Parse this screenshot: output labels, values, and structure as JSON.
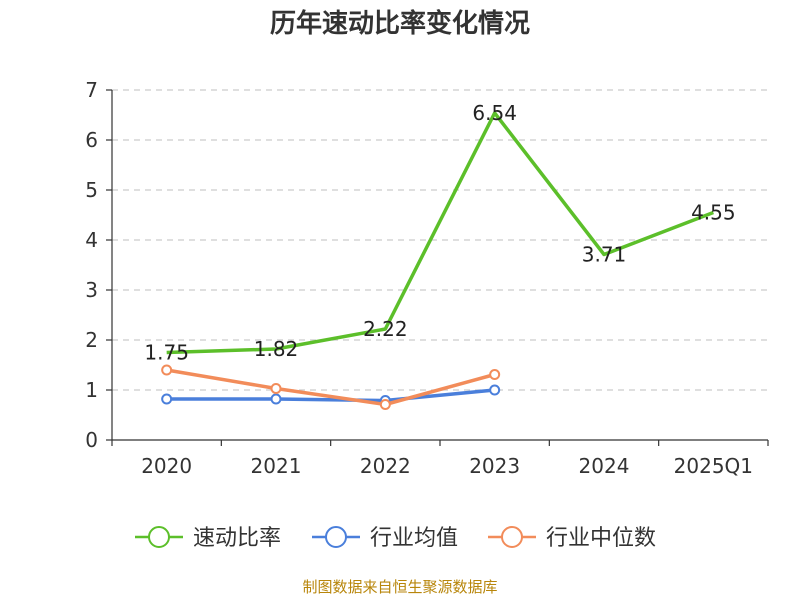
{
  "chart_data": {
    "type": "line",
    "title": "历年速动比率变化情况",
    "categories": [
      "2020",
      "2021",
      "2022",
      "2023",
      "2024",
      "2025Q1"
    ],
    "ylim": [
      0,
      7
    ],
    "yticks": [
      "0",
      "1",
      "2",
      "3",
      "4",
      "5",
      "6",
      "7"
    ],
    "grid": true,
    "legend_position": "bottom",
    "series": [
      {
        "name": "速动比率",
        "color": "#5cbf2a",
        "values": [
          1.75,
          1.82,
          2.22,
          6.54,
          3.71,
          4.55
        ],
        "labels": [
          "1.75",
          "1.82",
          "2.22",
          "6.54",
          "3.71",
          "4.55"
        ],
        "show_markers": false
      },
      {
        "name": "行业均值",
        "color": "#4a7fdb",
        "values": [
          0.82,
          0.82,
          0.79,
          1.0,
          null,
          null
        ],
        "show_markers": true
      },
      {
        "name": "行业中位数",
        "color": "#f28c5a",
        "values": [
          1.4,
          1.03,
          0.71,
          1.31,
          null,
          null
        ],
        "show_markers": true
      }
    ]
  },
  "footer": {
    "source": "制图数据来自恒生聚源数据库"
  }
}
